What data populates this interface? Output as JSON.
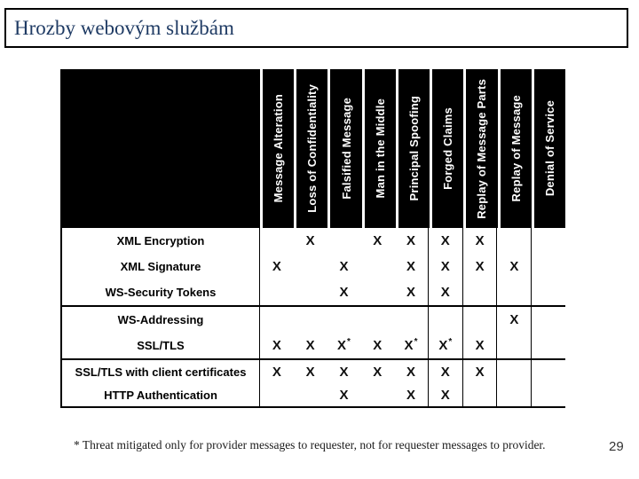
{
  "title": "Hrozby webovým službám",
  "table": {
    "columns": [
      "Message Alteration",
      "Loss of Confidentiality",
      "Falsified Message",
      "Man in the Middle",
      "Principal Spoofing",
      "Forged Claims",
      "Replay of Message Parts",
      "Replay of Message",
      "Denial of Service"
    ],
    "rows": [
      {
        "label": "XML Encryption",
        "group": 1,
        "marks": [
          "",
          "X",
          "",
          "X",
          "X",
          "X",
          "X",
          "",
          ""
        ]
      },
      {
        "label": "XML Signature",
        "group": 1,
        "marks": [
          "X",
          "",
          "X",
          "",
          "X",
          "X",
          "X",
          "X",
          ""
        ]
      },
      {
        "label": "WS-Security Tokens",
        "group": 1,
        "marks": [
          "",
          "",
          "X",
          "",
          "X",
          "X",
          "",
          "",
          ""
        ]
      },
      {
        "label": "WS-Addressing",
        "group": 2,
        "marks": [
          "",
          "",
          "",
          "",
          "",
          "",
          "",
          "X",
          ""
        ]
      },
      {
        "label": "SSL/TLS",
        "group": 2,
        "marks": [
          "X",
          "X",
          "X*",
          "X",
          "X*",
          "X*",
          "X",
          "",
          ""
        ]
      },
      {
        "label": "SSL/TLS with client certificates",
        "group": 3,
        "marks": [
          "X",
          "X",
          "X",
          "X",
          "X",
          "X",
          "X",
          "",
          ""
        ]
      },
      {
        "label": "HTTP Authentication",
        "group": 3,
        "marks": [
          "",
          "",
          "X",
          "",
          "X",
          "X",
          "",
          "",
          ""
        ]
      }
    ]
  },
  "footnote": "* Threat mitigated only for provider messages to requester, not for requester messages to provider.",
  "page_number": "29",
  "colors": {
    "title_text": "#1e3a63",
    "header_bg": "#000000",
    "header_text": "#ffffff",
    "mark": "#111111"
  }
}
